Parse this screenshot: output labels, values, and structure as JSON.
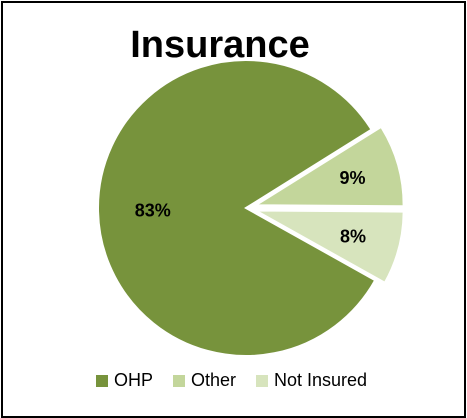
{
  "chart_data": {
    "type": "pie",
    "title": "Insurance",
    "categories": [
      "OHP",
      "Other",
      "Not Insured"
    ],
    "values": [
      83,
      9,
      8
    ],
    "labels": [
      "83%",
      "9%",
      "8%"
    ],
    "colors": [
      "#77933c",
      "#c3d69b",
      "#d7e4bd"
    ],
    "legend_position": "bottom"
  }
}
